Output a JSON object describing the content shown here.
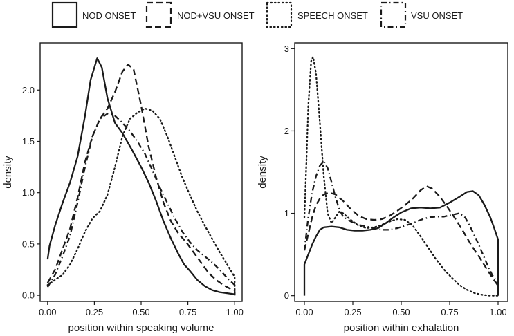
{
  "legend": {
    "entries": [
      {
        "label": "NOD ONSET",
        "dash": "solid"
      },
      {
        "label": "NOD+VSU ONSET",
        "dash": "dashed"
      },
      {
        "label": "SPEECH ONSET",
        "dash": "dotted"
      },
      {
        "label": "VSU ONSET",
        "dash": "dotdash"
      }
    ]
  },
  "chart_data": [
    {
      "type": "line",
      "xlabel": "position within speaking volume",
      "ylabel": "density",
      "xlim": [
        -0.04,
        1.04
      ],
      "ylim": [
        -0.06,
        2.46
      ],
      "xticks": [
        0,
        0.25,
        0.5,
        0.75,
        1
      ],
      "xtick_labels": [
        "0.00",
        "0.25",
        "0.50",
        "0.75",
        "1.00"
      ],
      "yticks": [
        0,
        0.5,
        1,
        1.5,
        2
      ],
      "ytick_labels": [
        "0.0",
        "0.5",
        "1.0",
        "1.5",
        "2.0"
      ],
      "grid": false,
      "series": [
        {
          "name": "NOD ONSET",
          "dash": "solid",
          "points": [
            [
              0,
              0.35
            ],
            [
              0.01,
              0.48
            ],
            [
              0.04,
              0.68
            ],
            [
              0.08,
              0.9
            ],
            [
              0.12,
              1.1
            ],
            [
              0.16,
              1.35
            ],
            [
              0.2,
              1.75
            ],
            [
              0.23,
              2.1
            ],
            [
              0.265,
              2.31
            ],
            [
              0.29,
              2.22
            ],
            [
              0.32,
              1.92
            ],
            [
              0.36,
              1.68
            ],
            [
              0.4,
              1.58
            ],
            [
              0.45,
              1.42
            ],
            [
              0.5,
              1.25
            ],
            [
              0.54,
              1.1
            ],
            [
              0.58,
              0.92
            ],
            [
              0.62,
              0.72
            ],
            [
              0.66,
              0.55
            ],
            [
              0.7,
              0.4
            ],
            [
              0.73,
              0.3
            ],
            [
              0.76,
              0.24
            ],
            [
              0.8,
              0.15
            ],
            [
              0.84,
              0.09
            ],
            [
              0.88,
              0.05
            ],
            [
              0.92,
              0.03
            ],
            [
              0.96,
              0.02
            ],
            [
              1,
              0.01
            ],
            [
              1,
              0
            ]
          ]
        },
        {
          "name": "NOD+VSU ONSET",
          "dash": "dashed",
          "points": [
            [
              0,
              0.12
            ],
            [
              0.04,
              0.25
            ],
            [
              0.08,
              0.45
            ],
            [
              0.12,
              0.65
            ],
            [
              0.16,
              0.95
            ],
            [
              0.2,
              1.3
            ],
            [
              0.24,
              1.55
            ],
            [
              0.28,
              1.72
            ],
            [
              0.32,
              1.82
            ],
            [
              0.36,
              1.98
            ],
            [
              0.4,
              2.18
            ],
            [
              0.43,
              2.25
            ],
            [
              0.46,
              2.2
            ],
            [
              0.5,
              1.85
            ],
            [
              0.54,
              1.45
            ],
            [
              0.58,
              1.15
            ],
            [
              0.62,
              0.9
            ],
            [
              0.66,
              0.72
            ],
            [
              0.7,
              0.6
            ],
            [
              0.74,
              0.52
            ],
            [
              0.78,
              0.42
            ],
            [
              0.82,
              0.32
            ],
            [
              0.86,
              0.22
            ],
            [
              0.9,
              0.15
            ],
            [
              0.94,
              0.1
            ],
            [
              0.98,
              0.06
            ],
            [
              1,
              0.05
            ],
            [
              1,
              0
            ]
          ]
        },
        {
          "name": "SPEECH ONSET",
          "dash": "dotted",
          "points": [
            [
              0,
              0.1
            ],
            [
              0.04,
              0.15
            ],
            [
              0.08,
              0.2
            ],
            [
              0.12,
              0.3
            ],
            [
              0.16,
              0.45
            ],
            [
              0.2,
              0.62
            ],
            [
              0.24,
              0.75
            ],
            [
              0.28,
              0.82
            ],
            [
              0.32,
              0.98
            ],
            [
              0.36,
              1.25
            ],
            [
              0.4,
              1.55
            ],
            [
              0.44,
              1.72
            ],
            [
              0.48,
              1.78
            ],
            [
              0.52,
              1.82
            ],
            [
              0.56,
              1.8
            ],
            [
              0.6,
              1.72
            ],
            [
              0.64,
              1.55
            ],
            [
              0.68,
              1.35
            ],
            [
              0.72,
              1.15
            ],
            [
              0.76,
              0.98
            ],
            [
              0.8,
              0.82
            ],
            [
              0.84,
              0.68
            ],
            [
              0.88,
              0.55
            ],
            [
              0.92,
              0.42
            ],
            [
              0.96,
              0.3
            ],
            [
              1,
              0.18
            ],
            [
              1,
              0
            ]
          ]
        },
        {
          "name": "VSU ONSET",
          "dash": "dotdash",
          "points": [
            [
              0,
              0.08
            ],
            [
              0.04,
              0.2
            ],
            [
              0.08,
              0.38
            ],
            [
              0.12,
              0.58
            ],
            [
              0.16,
              0.9
            ],
            [
              0.2,
              1.25
            ],
            [
              0.24,
              1.55
            ],
            [
              0.28,
              1.72
            ],
            [
              0.32,
              1.77
            ],
            [
              0.36,
              1.75
            ],
            [
              0.4,
              1.68
            ],
            [
              0.44,
              1.6
            ],
            [
              0.48,
              1.5
            ],
            [
              0.52,
              1.38
            ],
            [
              0.56,
              1.22
            ],
            [
              0.6,
              1.05
            ],
            [
              0.64,
              0.9
            ],
            [
              0.68,
              0.75
            ],
            [
              0.72,
              0.62
            ],
            [
              0.76,
              0.52
            ],
            [
              0.8,
              0.44
            ],
            [
              0.84,
              0.38
            ],
            [
              0.88,
              0.32
            ],
            [
              0.92,
              0.25
            ],
            [
              0.96,
              0.17
            ],
            [
              1,
              0.1
            ],
            [
              1,
              0
            ]
          ]
        }
      ]
    },
    {
      "type": "line",
      "xlabel": "position within exhalation",
      "ylabel": "density",
      "xlim": [
        -0.05,
        1.05
      ],
      "ylim": [
        -0.07,
        3.07
      ],
      "xticks": [
        0,
        0.25,
        0.5,
        0.75,
        1
      ],
      "xtick_labels": [
        "0.00",
        "0.25",
        "0.50",
        "0.75",
        "1.00"
      ],
      "yticks": [
        0,
        1,
        2,
        3
      ],
      "ytick_labels": [
        "0",
        "1",
        "2",
        "3"
      ],
      "grid": false,
      "series": [
        {
          "name": "NOD ONSET",
          "dash": "solid",
          "points": [
            [
              0,
              0
            ],
            [
              0,
              0.38
            ],
            [
              0.02,
              0.5
            ],
            [
              0.04,
              0.62
            ],
            [
              0.06,
              0.72
            ],
            [
              0.08,
              0.8
            ],
            [
              0.1,
              0.83
            ],
            [
              0.14,
              0.84
            ],
            [
              0.18,
              0.83
            ],
            [
              0.22,
              0.8
            ],
            [
              0.26,
              0.79
            ],
            [
              0.3,
              0.79
            ],
            [
              0.34,
              0.8
            ],
            [
              0.38,
              0.82
            ],
            [
              0.42,
              0.88
            ],
            [
              0.46,
              0.95
            ],
            [
              0.5,
              1.01
            ],
            [
              0.55,
              1.06
            ],
            [
              0.6,
              1.07
            ],
            [
              0.65,
              1.06
            ],
            [
              0.7,
              1.07
            ],
            [
              0.75,
              1.13
            ],
            [
              0.8,
              1.2
            ],
            [
              0.84,
              1.26
            ],
            [
              0.87,
              1.27
            ],
            [
              0.9,
              1.22
            ],
            [
              0.93,
              1.1
            ],
            [
              0.96,
              0.95
            ],
            [
              0.98,
              0.82
            ],
            [
              1,
              0.68
            ],
            [
              1,
              0
            ]
          ]
        },
        {
          "name": "NOD+VSU ONSET",
          "dash": "dashed",
          "points": [
            [
              0,
              0.55
            ],
            [
              0.02,
              0.75
            ],
            [
              0.04,
              0.95
            ],
            [
              0.06,
              1.1
            ],
            [
              0.08,
              1.18
            ],
            [
              0.1,
              1.23
            ],
            [
              0.13,
              1.25
            ],
            [
              0.16,
              1.23
            ],
            [
              0.2,
              1.15
            ],
            [
              0.24,
              1.05
            ],
            [
              0.28,
              0.97
            ],
            [
              0.32,
              0.93
            ],
            [
              0.36,
              0.92
            ],
            [
              0.4,
              0.93
            ],
            [
              0.44,
              0.97
            ],
            [
              0.48,
              1.03
            ],
            [
              0.52,
              1.1
            ],
            [
              0.56,
              1.18
            ],
            [
              0.6,
              1.28
            ],
            [
              0.63,
              1.33
            ],
            [
              0.66,
              1.3
            ],
            [
              0.7,
              1.2
            ],
            [
              0.74,
              1.07
            ],
            [
              0.78,
              0.93
            ],
            [
              0.82,
              0.78
            ],
            [
              0.86,
              0.62
            ],
            [
              0.9,
              0.48
            ],
            [
              0.94,
              0.33
            ],
            [
              0.97,
              0.22
            ],
            [
              1,
              0.12
            ]
          ]
        },
        {
          "name": "SPEECH ONSET",
          "dash": "dotted",
          "points": [
            [
              0,
              0.95
            ],
            [
              0.01,
              1.6
            ],
            [
              0.02,
              2.3
            ],
            [
              0.035,
              2.85
            ],
            [
              0.045,
              2.9
            ],
            [
              0.06,
              2.7
            ],
            [
              0.08,
              2.1
            ],
            [
              0.1,
              1.45
            ],
            [
              0.12,
              1.0
            ],
            [
              0.14,
              0.88
            ],
            [
              0.16,
              0.95
            ],
            [
              0.18,
              1.02
            ],
            [
              0.2,
              1.0
            ],
            [
              0.24,
              0.92
            ],
            [
              0.28,
              0.85
            ],
            [
              0.32,
              0.82
            ],
            [
              0.36,
              0.83
            ],
            [
              0.4,
              0.86
            ],
            [
              0.44,
              0.9
            ],
            [
              0.48,
              0.93
            ],
            [
              0.52,
              0.92
            ],
            [
              0.56,
              0.85
            ],
            [
              0.6,
              0.72
            ],
            [
              0.64,
              0.58
            ],
            [
              0.68,
              0.44
            ],
            [
              0.72,
              0.32
            ],
            [
              0.76,
              0.22
            ],
            [
              0.8,
              0.13
            ],
            [
              0.84,
              0.07
            ],
            [
              0.88,
              0.03
            ],
            [
              0.92,
              0.01
            ],
            [
              0.96,
              0
            ],
            [
              1,
              0
            ]
          ]
        },
        {
          "name": "VSU ONSET",
          "dash": "dotdash",
          "points": [
            [
              0,
              0.55
            ],
            [
              0.02,
              0.95
            ],
            [
              0.04,
              1.25
            ],
            [
              0.06,
              1.45
            ],
            [
              0.08,
              1.58
            ],
            [
              0.1,
              1.63
            ],
            [
              0.12,
              1.55
            ],
            [
              0.14,
              1.38
            ],
            [
              0.16,
              1.2
            ],
            [
              0.18,
              1.05
            ],
            [
              0.2,
              0.96
            ],
            [
              0.24,
              0.9
            ],
            [
              0.28,
              0.86
            ],
            [
              0.32,
              0.84
            ],
            [
              0.36,
              0.82
            ],
            [
              0.4,
              0.8
            ],
            [
              0.44,
              0.8
            ],
            [
              0.48,
              0.82
            ],
            [
              0.52,
              0.85
            ],
            [
              0.56,
              0.88
            ],
            [
              0.6,
              0.92
            ],
            [
              0.64,
              0.95
            ],
            [
              0.68,
              0.96
            ],
            [
              0.72,
              0.96
            ],
            [
              0.76,
              0.98
            ],
            [
              0.8,
              1.0
            ],
            [
              0.83,
              0.95
            ],
            [
              0.86,
              0.82
            ],
            [
              0.9,
              0.62
            ],
            [
              0.94,
              0.4
            ],
            [
              0.97,
              0.25
            ],
            [
              1,
              0.15
            ]
          ]
        }
      ]
    }
  ]
}
